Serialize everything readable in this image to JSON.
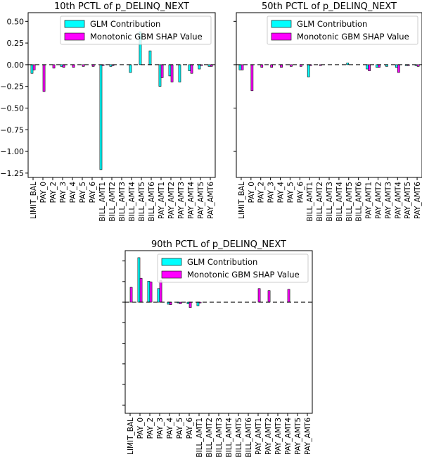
{
  "colors": {
    "glm": "#00ffff",
    "shap": "#ff00ff",
    "zero_line": "#000000"
  },
  "legend": {
    "glm_label": "GLM Contribution",
    "shap_label": "Monotonic GBM SHAP Value"
  },
  "chart_data": [
    {
      "type": "bar",
      "title": "10th PCTL of p_DELINQ_NEXT",
      "categories": [
        "LIMIT_BAL",
        "PAY_0",
        "PAY_2",
        "PAY_3",
        "PAY_4",
        "PAY_5",
        "PAY_6",
        "BILL_AMT1",
        "BILL_AMT2",
        "BILL_AMT3",
        "BILL_AMT4",
        "BILL_AMT5",
        "BILL_AMT6",
        "PAY_AMT1",
        "PAY_AMT2",
        "PAY_AMT3",
        "PAY_AMT4",
        "PAY_AMT5",
        "PAY_AMT6"
      ],
      "series": [
        {
          "name": "GLM Contribution",
          "values": [
            -0.1,
            0.0,
            0.0,
            -0.02,
            0.0,
            0.0,
            0.0,
            -1.21,
            -0.02,
            0.0,
            -0.09,
            0.38,
            0.16,
            -0.25,
            -0.13,
            -0.2,
            -0.07,
            -0.05,
            -0.02
          ]
        },
        {
          "name": "Monotonic GBM SHAP Value",
          "values": [
            -0.06,
            -0.31,
            -0.04,
            -0.03,
            -0.03,
            -0.02,
            -0.02,
            -0.01,
            -0.01,
            0.0,
            0.0,
            0.0,
            0.0,
            -0.15,
            -0.2,
            0.0,
            -0.1,
            -0.01,
            -0.02
          ]
        }
      ],
      "ylim": [
        -1.3,
        0.6
      ],
      "yticks": [
        0.5,
        0.25,
        0.0,
        -0.25,
        -0.5,
        -0.75,
        -1.0,
        -1.25
      ],
      "ytick_labels": [
        "0.50",
        "0.25",
        "0.00",
        "−0.25",
        "−0.50",
        "−0.75",
        "−1.00",
        "−1.25"
      ],
      "legend_position": "top-right",
      "grid": false
    },
    {
      "type": "bar",
      "title": "50th PCTL of p_DELINQ_NEXT",
      "categories": [
        "LIMIT_BAL",
        "PAY_0",
        "PAY_2",
        "PAY_3",
        "PAY_4",
        "PAY_5",
        "PAY_6",
        "BILL_AMT1",
        "BILL_AMT2",
        "BILL_AMT3",
        "BILL_AMT4",
        "BILL_AMT5",
        "BILL_AMT6",
        "PAY_AMT1",
        "PAY_AMT2",
        "PAY_AMT3",
        "PAY_AMT4",
        "PAY_AMT5",
        "PAY_AMT6"
      ],
      "series": [
        {
          "name": "GLM Contribution",
          "values": [
            -0.06,
            0.0,
            0.0,
            0.0,
            0.0,
            0.0,
            0.0,
            -0.14,
            0.0,
            0.0,
            0.0,
            0.02,
            0.0,
            -0.05,
            -0.03,
            -0.02,
            -0.03,
            -0.01,
            -0.01
          ]
        },
        {
          "name": "Monotonic GBM SHAP Value",
          "values": [
            -0.06,
            -0.3,
            -0.03,
            -0.03,
            -0.03,
            -0.02,
            -0.02,
            -0.01,
            -0.01,
            0.0,
            0.0,
            0.0,
            0.0,
            -0.07,
            -0.03,
            0.0,
            -0.09,
            -0.01,
            -0.02
          ]
        }
      ],
      "ylim": [
        -1.3,
        0.6
      ],
      "legend_position": "top-right",
      "grid": false
    },
    {
      "type": "bar",
      "title": "90th PCTL of p_DELINQ_NEXT",
      "categories": [
        "LIMIT_BAL",
        "PAY_0",
        "PAY_2",
        "PAY_3",
        "PAY_4",
        "PAY_5",
        "PAY_6",
        "BILL_AMT1",
        "BILL_AMT2",
        "BILL_AMT3",
        "BILL_AMT4",
        "BILL_AMT5",
        "BILL_AMT6",
        "PAY_AMT1",
        "PAY_AMT2",
        "PAY_AMT3",
        "PAY_AMT4",
        "PAY_AMT5",
        "PAY_AMT6"
      ],
      "series": [
        {
          "name": "GLM Contribution",
          "values": [
            0.0,
            1.08,
            0.51,
            0.33,
            -0.05,
            -0.02,
            -0.04,
            -0.09,
            0.0,
            0.0,
            0.0,
            0.0,
            0.0,
            0.0,
            0.0,
            0.0,
            0.0,
            0.0,
            0.0
          ]
        },
        {
          "name": "Monotonic GBM SHAP Value",
          "values": [
            0.36,
            0.58,
            0.49,
            0.52,
            -0.06,
            -0.04,
            -0.13,
            -0.02,
            0.0,
            0.0,
            0.0,
            0.0,
            0.0,
            0.33,
            0.28,
            0.0,
            0.31,
            0.0,
            0.0
          ]
        }
      ],
      "ylim": [
        -2.7,
        1.25
      ],
      "legend_position": "top-right",
      "grid": false
    }
  ]
}
